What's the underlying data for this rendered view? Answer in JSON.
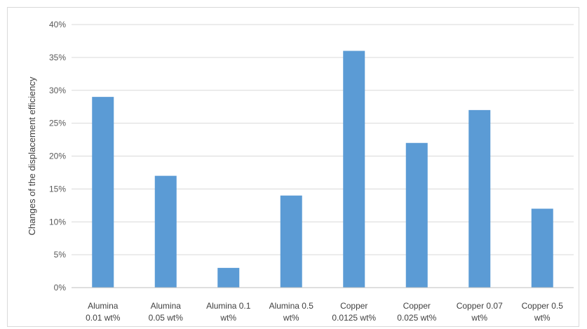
{
  "chart_data": {
    "type": "bar",
    "title": "",
    "xlabel": "",
    "ylabel": "Changes of the displacement efficiency",
    "ylim": [
      0,
      0.4
    ],
    "ytick_values": [
      0,
      0.05,
      0.1,
      0.15,
      0.2,
      0.25,
      0.3,
      0.35,
      0.4
    ],
    "ytick_labels": [
      "0%",
      "5%",
      "10%",
      "15%",
      "20%",
      "25%",
      "30%",
      "35%",
      "40%"
    ],
    "grid": true,
    "legend": "none",
    "categories": [
      [
        "Alumina",
        "0.01 wt%"
      ],
      [
        "Alumina",
        "0.05 wt%"
      ],
      [
        "Alumina 0.1",
        "wt%"
      ],
      [
        "Alumina 0.5",
        "wt%"
      ],
      [
        "Copper",
        "0.0125 wt%"
      ],
      [
        "Copper",
        "0.025 wt%"
      ],
      [
        "Copper 0.07",
        "wt%"
      ],
      [
        "Copper 0.5",
        "wt%"
      ]
    ],
    "values": [
      0.29,
      0.17,
      0.03,
      0.14,
      0.36,
      0.22,
      0.27,
      0.12
    ],
    "colors": {
      "bar": "#5b9bd5",
      "grid": "#d9d9d9",
      "axis": "#bfbfbf"
    }
  }
}
